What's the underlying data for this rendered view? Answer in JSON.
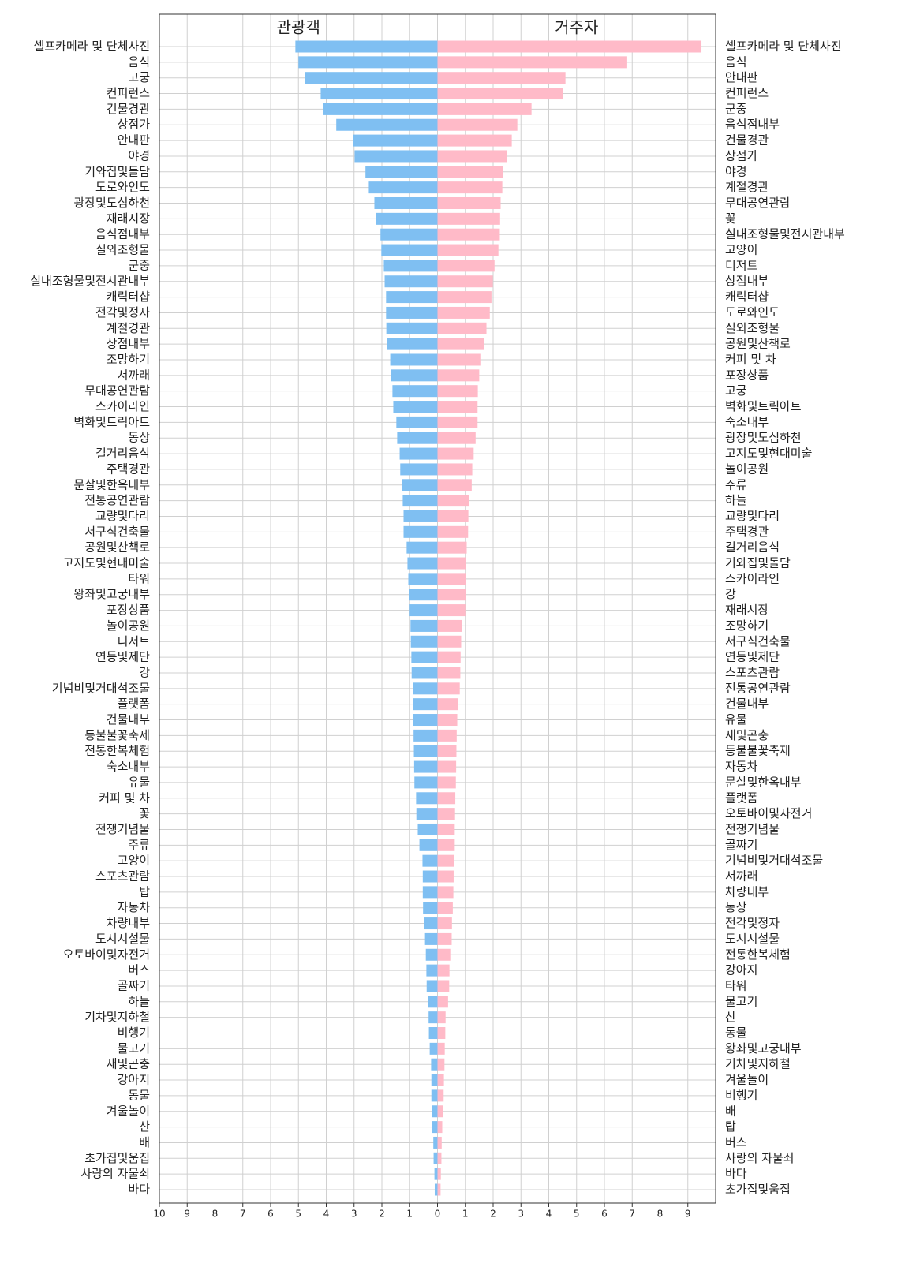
{
  "chart_data": {
    "type": "butterfly-bar",
    "xlim": [
      -10,
      10
    ],
    "xticks": [
      {
        "value": -10,
        "label": "10"
      },
      {
        "value": -9,
        "label": "9"
      },
      {
        "value": -8,
        "label": "8"
      },
      {
        "value": -7,
        "label": "7"
      },
      {
        "value": -6,
        "label": "6"
      },
      {
        "value": -5,
        "label": "5"
      },
      {
        "value": -4,
        "label": "4"
      },
      {
        "value": -3,
        "label": "3"
      },
      {
        "value": -2,
        "label": "2"
      },
      {
        "value": -1,
        "label": "1"
      },
      0,
      1,
      2,
      3,
      4,
      5,
      6,
      7,
      8,
      9
    ],
    "grid": true,
    "series": [
      {
        "name": "관광객",
        "side": "left",
        "color": "#7fbff2",
        "categories": [
          "셀프카메라 및 단체사진",
          "음식",
          "고궁",
          "컨퍼런스",
          "건물경관",
          "상점가",
          "안내판",
          "야경",
          "기와집및돌담",
          "도로와인도",
          "광장및도심하천",
          "재래시장",
          "음식점내부",
          "실외조형물",
          "군중",
          "실내조형물및전시관내부",
          "캐릭터샵",
          "전각및정자",
          "계절경관",
          "상점내부",
          "조망하기",
          "서까래",
          "무대공연관람",
          "스카이라인",
          "벽화및트릭아트",
          "동상",
          "길거리음식",
          "주택경관",
          "문살및한옥내부",
          "전통공연관람",
          "교량및다리",
          "서구식건축물",
          "공원및산책로",
          "고지도및현대미술",
          "타워",
          "왕좌및고궁내부",
          "포장상품",
          "놀이공원",
          "디저트",
          "연등및제단",
          "강",
          "기념비및거대석조물",
          "플랫폼",
          "건물내부",
          "등불불꽃축제",
          "전통한복체험",
          "숙소내부",
          "유물",
          "커피 및 차",
          "꽃",
          "전쟁기념물",
          "주류",
          "고양이",
          "스포츠관람",
          "탑",
          "자동차",
          "차량내부",
          "도시시설물",
          "오토바이및자전거",
          "버스",
          "골짜기",
          "하늘",
          "기차및지하철",
          "비행기",
          "물고기",
          "새및곤충",
          "강아지",
          "동물",
          "겨울놀이",
          "산",
          "배",
          "초가집및움집",
          "사랑의 자물쇠",
          "바다"
        ],
        "values": [
          5.11,
          5.0,
          4.77,
          4.2,
          4.12,
          3.64,
          3.04,
          2.98,
          2.59,
          2.47,
          2.27,
          2.22,
          2.05,
          2.02,
          1.93,
          1.9,
          1.85,
          1.85,
          1.84,
          1.82,
          1.7,
          1.68,
          1.62,
          1.59,
          1.48,
          1.45,
          1.36,
          1.34,
          1.28,
          1.25,
          1.22,
          1.22,
          1.11,
          1.08,
          1.05,
          1.02,
          1.0,
          0.97,
          0.96,
          0.94,
          0.93,
          0.88,
          0.87,
          0.87,
          0.86,
          0.85,
          0.84,
          0.83,
          0.77,
          0.76,
          0.71,
          0.65,
          0.54,
          0.53,
          0.53,
          0.52,
          0.48,
          0.45,
          0.42,
          0.4,
          0.39,
          0.34,
          0.32,
          0.31,
          0.28,
          0.23,
          0.22,
          0.22,
          0.21,
          0.2,
          0.15,
          0.14,
          0.11,
          0.1
        ]
      },
      {
        "name": "거주자",
        "side": "right",
        "color": "#ffbac8",
        "categories": [
          "셀프카메라 및 단체사진",
          "음식",
          "안내판",
          "컨퍼런스",
          "군중",
          "음식점내부",
          "건물경관",
          "상점가",
          "야경",
          "계절경관",
          "무대공연관람",
          "꽃",
          "실내조형물및전시관내부",
          "고양이",
          "디저트",
          "상점내부",
          "캐릭터샵",
          "도로와인도",
          "실외조형물",
          "공원및산책로",
          "커피 및 차",
          "포장상품",
          "고궁",
          "벽화및트릭아트",
          "숙소내부",
          "광장및도심하천",
          "고지도및현대미술",
          "놀이공원",
          "주류",
          "하늘",
          "교량및다리",
          "주택경관",
          "길거리음식",
          "기와집및돌담",
          "스카이라인",
          "강",
          "재래시장",
          "조망하기",
          "서구식건축물",
          "연등및제단",
          "스포츠관람",
          "전통공연관람",
          "건물내부",
          "유물",
          "새및곤충",
          "등불불꽃축제",
          "자동차",
          "문살및한옥내부",
          "플랫폼",
          "오토바이및자전거",
          "전쟁기념물",
          "골짜기",
          "기념비및거대석조물",
          "서까래",
          "차량내부",
          "동상",
          "전각및정자",
          "도시시설물",
          "전통한복체험",
          "강아지",
          "타워",
          "물고기",
          "산",
          "동물",
          "왕좌및고궁내부",
          "기차및지하철",
          "겨울놀이",
          "비행기",
          "배",
          "탑",
          "버스",
          "사랑의 자물쇠",
          "바다",
          "초가집및움집"
        ],
        "values": [
          9.49,
          6.82,
          4.6,
          4.52,
          3.38,
          2.87,
          2.67,
          2.5,
          2.36,
          2.33,
          2.27,
          2.25,
          2.24,
          2.19,
          2.05,
          1.99,
          1.94,
          1.88,
          1.76,
          1.68,
          1.54,
          1.5,
          1.45,
          1.44,
          1.44,
          1.37,
          1.3,
          1.25,
          1.23,
          1.12,
          1.11,
          1.1,
          1.05,
          1.03,
          1.02,
          1.01,
          1.0,
          0.88,
          0.85,
          0.83,
          0.82,
          0.8,
          0.74,
          0.71,
          0.69,
          0.68,
          0.67,
          0.66,
          0.64,
          0.63,
          0.62,
          0.62,
          0.6,
          0.58,
          0.57,
          0.55,
          0.52,
          0.51,
          0.46,
          0.43,
          0.42,
          0.38,
          0.29,
          0.28,
          0.26,
          0.25,
          0.23,
          0.22,
          0.21,
          0.17,
          0.15,
          0.14,
          0.12,
          0.11
        ]
      }
    ]
  }
}
